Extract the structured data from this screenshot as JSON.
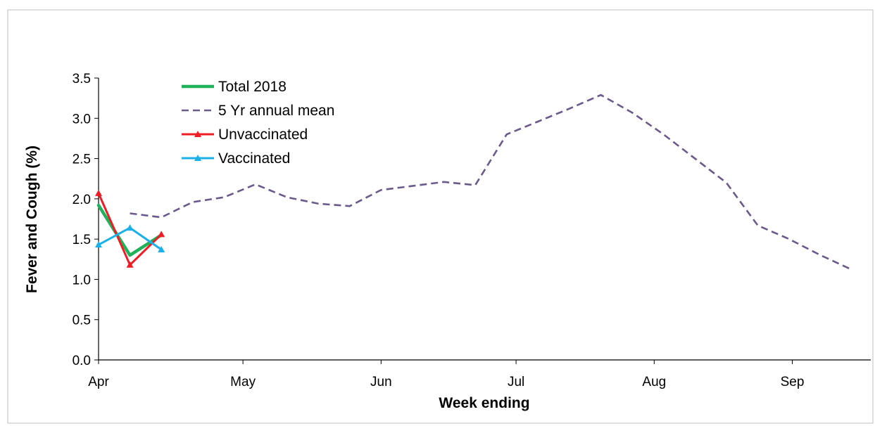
{
  "chart_data": {
    "type": "line",
    "xlabel": "Week ending",
    "ylabel": "Fever and Cough (%)",
    "ylim": [
      0,
      3.5
    ],
    "yticks": [
      "0.0",
      "0.5",
      "1.0",
      "1.5",
      "2.0",
      "2.5",
      "3.0",
      "3.5"
    ],
    "xlim": [
      0,
      24.6
    ],
    "x_unit": "weeks after first week ending in April",
    "xticks": [
      {
        "label": "Apr",
        "x": 0
      },
      {
        "label": "May",
        "x": 4.6
      },
      {
        "label": "Jun",
        "x": 9
      },
      {
        "label": "Jul",
        "x": 13.3
      },
      {
        "label": "Aug",
        "x": 17.7
      },
      {
        "label": "Sep",
        "x": 22.1
      }
    ],
    "legend_position": "top-left",
    "series": [
      {
        "name": "Total 2018",
        "color": "#1fb25a",
        "style": "solid",
        "marker": "none",
        "points": [
          [
            0,
            1.92
          ],
          [
            1,
            1.3
          ],
          [
            2,
            1.55
          ]
        ]
      },
      {
        "name": "5 Yr annual mean",
        "color": "#6a5a8c",
        "style": "dashed",
        "marker": "none",
        "points": [
          [
            1,
            1.82
          ],
          [
            2,
            1.77
          ],
          [
            3,
            1.96
          ],
          [
            4,
            2.02
          ],
          [
            5,
            2.18
          ],
          [
            6,
            2.02
          ],
          [
            7,
            1.94
          ],
          [
            8,
            1.91
          ],
          [
            9,
            2.11
          ],
          [
            10,
            2.16
          ],
          [
            11,
            2.21
          ],
          [
            12,
            2.17
          ],
          [
            13,
            2.8
          ],
          [
            14,
            2.96
          ],
          [
            15,
            3.12
          ],
          [
            16,
            3.29
          ],
          [
            17,
            3.07
          ],
          [
            18,
            2.8
          ],
          [
            19,
            2.5
          ],
          [
            20,
            2.2
          ],
          [
            21,
            1.67
          ],
          [
            22,
            1.5
          ],
          [
            23,
            1.3
          ],
          [
            24,
            1.12
          ]
        ]
      },
      {
        "name": "Unvaccinated",
        "color": "#ee1c25",
        "style": "solid",
        "marker": "triangle",
        "points": [
          [
            0,
            2.07
          ],
          [
            1,
            1.18
          ],
          [
            2,
            1.56
          ]
        ]
      },
      {
        "name": "Vaccinated",
        "color": "#1ab0e8",
        "style": "solid",
        "marker": "triangle",
        "points": [
          [
            0,
            1.43
          ],
          [
            1,
            1.64
          ],
          [
            2,
            1.37
          ]
        ]
      }
    ]
  }
}
